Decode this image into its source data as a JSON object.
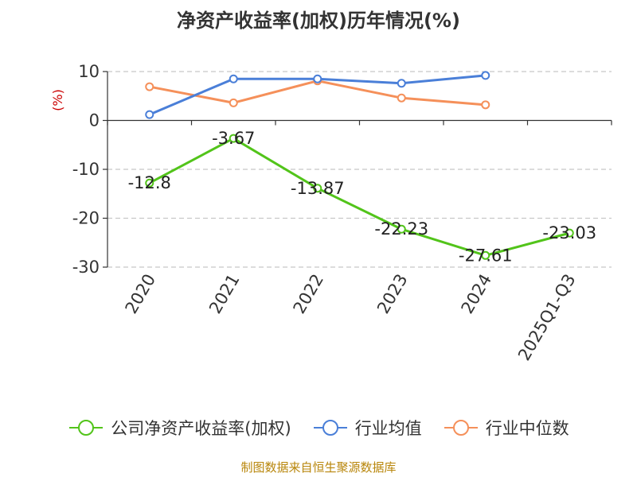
{
  "chart_data": {
    "type": "line",
    "title": "净资产收益率(加权)历年情况(%)",
    "ylabel": "(%)",
    "xlabel": "",
    "categories": [
      "2020",
      "2021",
      "2022",
      "2023",
      "2024",
      "2025Q1-Q3"
    ],
    "yticks": [
      10,
      0,
      -10,
      -20,
      -30
    ],
    "ylim": [
      -30,
      10
    ],
    "grid": true,
    "legend_position": "bottom",
    "series": [
      {
        "name": "公司净资产收益率(加权)",
        "color": "#52c41a",
        "values": [
          -12.8,
          -3.67,
          -13.87,
          -22.23,
          -27.61,
          -23.03
        ],
        "labels": [
          "-12.8",
          "-3.67",
          "-13.87",
          "-22.23",
          "-27.61",
          "-23.03"
        ]
      },
      {
        "name": "行业均值",
        "color": "#4a7fd8",
        "values": [
          1.2,
          8.5,
          8.5,
          7.6,
          9.2,
          null
        ]
      },
      {
        "name": "行业中位数",
        "color": "#f5905a",
        "values": [
          6.9,
          3.6,
          8.1,
          4.6,
          3.2,
          null
        ]
      }
    ]
  },
  "source_note": "制图数据来自恒生聚源数据库"
}
